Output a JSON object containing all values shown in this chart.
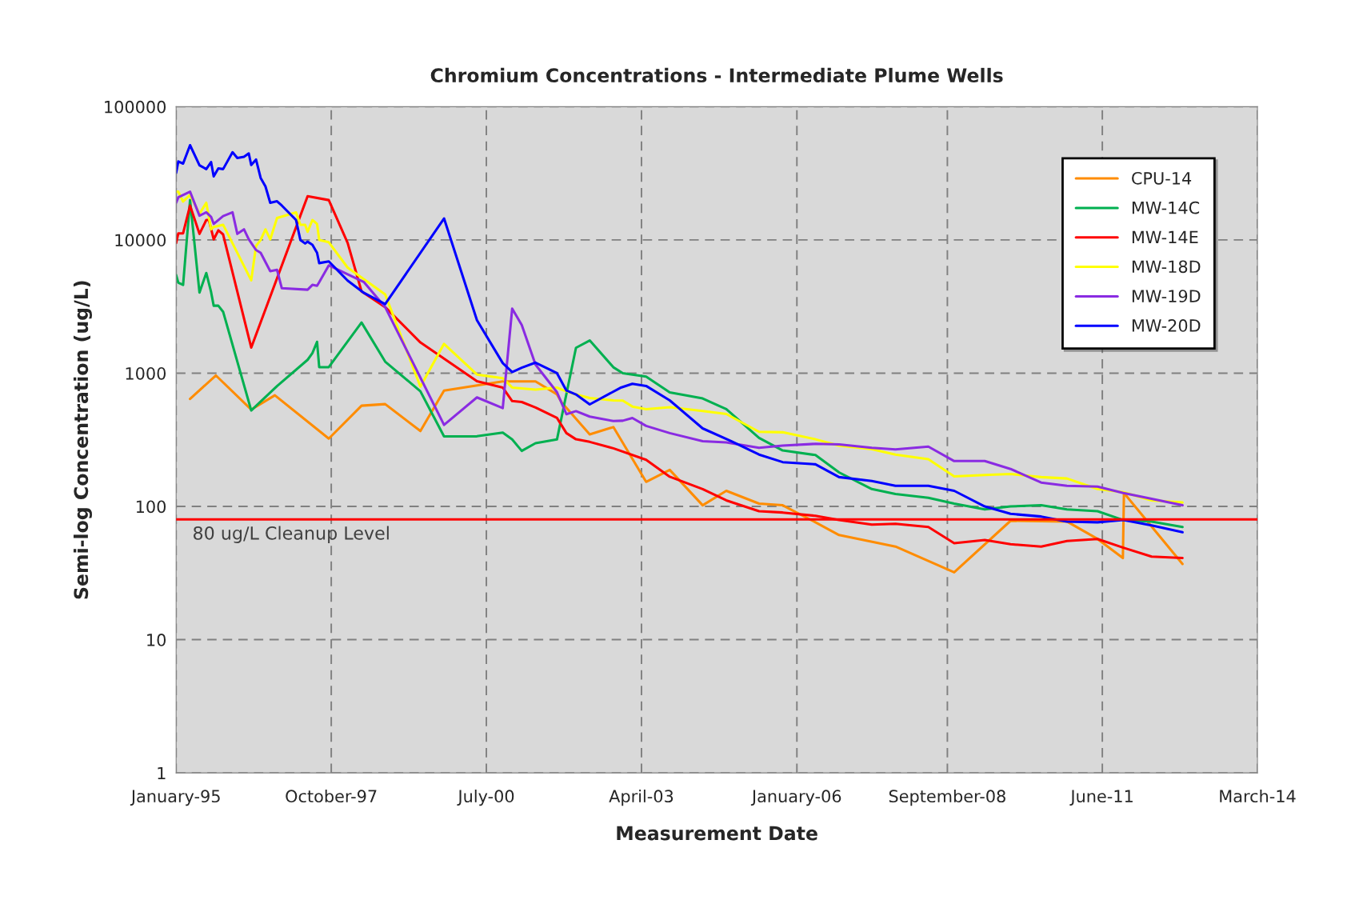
{
  "chart_data": {
    "type": "line",
    "title": "Chromium Concentrations - Intermediate Plume Wells",
    "xlabel": "Measurement Date",
    "ylabel": "Semi-log Concentration (ug/L)",
    "log": "y",
    "ylim": [
      1,
      100000
    ],
    "yticks": [
      1,
      10,
      100,
      1000,
      10000,
      100000
    ],
    "xlim": [
      "1995-01-01",
      "2014-03-01"
    ],
    "xticks": [
      {
        "value": "1995-01-01",
        "label": "January-95"
      },
      {
        "value": "1997-10-01",
        "label": "October-97"
      },
      {
        "value": "2000-07-01",
        "label": "July-00"
      },
      {
        "value": "2003-04-01",
        "label": "April-03"
      },
      {
        "value": "2006-01-01",
        "label": "January-06"
      },
      {
        "value": "2008-09-01",
        "label": "September-08"
      },
      {
        "value": "2011-06-01",
        "label": "June-11"
      },
      {
        "value": "2014-03-01",
        "label": "March-14"
      }
    ],
    "grid": true,
    "legend": "top right",
    "marker": "none",
    "line_style": "solid",
    "ref_lines": [
      {
        "axis": "y",
        "value": 80,
        "label": "80 ug/L Cleanup Level",
        "color": "#ff0000"
      }
    ],
    "series": [
      {
        "name": "CPU-14",
        "color": "#ff8c00",
        "x": [
          "1995-04-01",
          "1995-09-15",
          "1996-05-01",
          "1996-10-01",
          "1997-09-15",
          "1998-04-15",
          "1998-09-15",
          "1999-05-01",
          "1999-10-01",
          "2000-10-15",
          "2001-05-15",
          "2001-10-01",
          "2001-11-01",
          "2002-05-01",
          "2002-10-01",
          "2003-05-01",
          "2003-10-01",
          "2004-05-01",
          "2004-10-01",
          "2005-05-01",
          "2005-10-01",
          "2006-05-01",
          "2006-10-01",
          "2007-10-01",
          "2008-10-15",
          "2009-10-15",
          "2010-10-15",
          "2011-05-01",
          "2011-10-12",
          "2011-10-19",
          "2012-11-01"
        ],
        "values": [
          641,
          962,
          533,
          682,
          323,
          570,
          586,
          368,
          740,
          867,
          867,
          694,
          602,
          347,
          394,
          153,
          188,
          102,
          131,
          105,
          102,
          76,
          61,
          50,
          32,
          78,
          77,
          57,
          41,
          126,
          37
        ]
      },
      {
        "name": "MW-14C",
        "color": "#00b050",
        "x": [
          "1995-01-01",
          "1995-01-15",
          "1995-02-15",
          "1995-04-01",
          "1995-06-01",
          "1995-07-15",
          "1995-08-15",
          "1995-09-01",
          "1995-10-01",
          "1995-11-01",
          "1996-05-01",
          "1996-10-15",
          "1997-05-01",
          "1997-06-01",
          "1997-07-01",
          "1997-07-15",
          "1997-09-15",
          "1998-04-15",
          "1998-09-15",
          "1999-05-01",
          "1999-10-01",
          "2000-05-01",
          "2000-10-15",
          "2000-12-15",
          "2001-02-15",
          "2001-05-15",
          "2001-10-01",
          "2002-02-01",
          "2002-05-01",
          "2002-10-01",
          "2002-12-01",
          "2003-05-01",
          "2003-10-01",
          "2004-05-01",
          "2004-10-01",
          "2005-05-01",
          "2005-10-01",
          "2006-05-01",
          "2006-10-01",
          "2007-05-01",
          "2007-10-01",
          "2008-05-01",
          "2008-10-15",
          "2009-05-01",
          "2009-10-15",
          "2010-05-01",
          "2010-10-15",
          "2011-05-01",
          "2011-10-15",
          "2012-04-15",
          "2012-11-01"
        ],
        "values": [
          5450,
          4770,
          4600,
          19900,
          4030,
          5650,
          4070,
          3210,
          3210,
          2890,
          525,
          800,
          1260,
          1415,
          1720,
          1110,
          1110,
          2400,
          1220,
          731,
          335,
          336,
          358,
          318,
          261,
          298,
          318,
          1550,
          1760,
          1107,
          1000,
          942,
          718,
          646,
          537,
          327,
          263,
          243,
          180,
          135,
          124,
          116,
          105,
          95,
          100,
          102,
          95,
          92,
          79,
          77,
          70
        ]
      },
      {
        "name": "MW-14E",
        "color": "#ff0000",
        "x": [
          "1995-01-01",
          "1995-01-15",
          "1995-02-15",
          "1995-04-01",
          "1995-06-01",
          "1995-07-15",
          "1995-08-01",
          "1995-09-01",
          "1995-10-01",
          "1995-11-01",
          "1996-05-01",
          "1997-05-01",
          "1997-09-15",
          "1998-01-15",
          "1998-04-15",
          "1998-09-15",
          "1999-05-01",
          "2000-05-01",
          "2000-10-15",
          "2000-12-15",
          "2001-02-15",
          "2001-05-15",
          "2001-10-01",
          "2001-12-01",
          "2002-02-01",
          "2002-05-01",
          "2002-10-01",
          "2003-05-01",
          "2003-10-01",
          "2004-05-01",
          "2004-10-01",
          "2005-05-01",
          "2005-10-01",
          "2006-05-01",
          "2006-10-01",
          "2007-05-01",
          "2007-10-01",
          "2008-05-01",
          "2008-10-15",
          "2009-05-01",
          "2009-10-15",
          "2010-05-01",
          "2010-10-15",
          "2011-05-01",
          "2011-10-15",
          "2012-04-15",
          "2012-11-01"
        ],
        "values": [
          9500,
          11200,
          11200,
          18100,
          11100,
          14100,
          14100,
          10100,
          11800,
          11000,
          1556,
          21300,
          19900,
          9500,
          4110,
          3130,
          1700,
          871,
          780,
          618,
          608,
          553,
          462,
          355,
          319,
          305,
          273,
          224,
          167,
          135,
          111,
          92,
          90,
          85,
          79,
          73,
          74,
          70,
          53,
          56,
          52,
          50,
          55,
          57,
          49,
          42,
          41
        ]
      },
      {
        "name": "MW-18D",
        "color": "#ffff00",
        "x": [
          "1995-01-01",
          "1995-01-15",
          "1995-02-15",
          "1995-04-01",
          "1995-06-01",
          "1995-07-15",
          "1995-08-15",
          "1995-09-01",
          "1995-11-01",
          "1996-05-01",
          "1996-06-01",
          "1996-07-01",
          "1996-08-01",
          "1996-09-01",
          "1996-10-15",
          "1997-02-15",
          "1997-03-15",
          "1997-04-15",
          "1997-05-01",
          "1997-06-01",
          "1997-07-01",
          "1997-07-15",
          "1997-09-15",
          "1998-01-15",
          "1998-09-15",
          "1999-05-01",
          "1999-10-01",
          "2000-05-01",
          "2000-10-15",
          "2000-12-15",
          "2001-05-15",
          "2001-10-01",
          "2001-11-01",
          "2002-02-01",
          "2002-05-01",
          "2002-10-01",
          "2002-12-01",
          "2003-02-01",
          "2003-05-01",
          "2003-10-01",
          "2004-05-01",
          "2004-10-01",
          "2005-05-01",
          "2005-10-01",
          "2006-05-01",
          "2006-10-01",
          "2007-05-01",
          "2007-10-01",
          "2008-05-01",
          "2008-10-15",
          "2009-05-01",
          "2009-10-15",
          "2010-05-01",
          "2010-10-15",
          "2011-05-01",
          "2011-10-15",
          "2012-04-15",
          "2012-11-01"
        ],
        "values": [
          23000,
          23000,
          19400,
          21800,
          15700,
          19000,
          12000,
          12500,
          13000,
          4980,
          9000,
          10000,
          12000,
          10100,
          14600,
          16100,
          13000,
          13000,
          11500,
          14100,
          13200,
          10000,
          9600,
          6200,
          3900,
          793,
          1660,
          977,
          918,
          780,
          752,
          780,
          752,
          692,
          652,
          625,
          622,
          562,
          537,
          555,
          520,
          494,
          363,
          360,
          319,
          286,
          269,
          245,
          226,
          168,
          172,
          175,
          166,
          162,
          135,
          128,
          111,
          107
        ]
      },
      {
        "name": "MW-19D",
        "color": "#8a2be2",
        "x": [
          "1995-01-01",
          "1995-01-15",
          "1995-04-01",
          "1995-06-01",
          "1995-07-15",
          "1995-08-15",
          "1995-09-01",
          "1995-11-01",
          "1996-01-01",
          "1996-02-01",
          "1996-03-15",
          "1996-04-15",
          "1996-06-01",
          "1996-07-01",
          "1996-09-01",
          "1996-10-15",
          "1996-11-15",
          "1997-05-01",
          "1997-06-01",
          "1997-07-01",
          "1997-07-15",
          "1997-09-15",
          "1998-05-01",
          "1998-09-15",
          "1999-10-01",
          "2000-05-01",
          "2000-10-15",
          "2000-12-15",
          "2001-02-15",
          "2001-05-15",
          "2001-10-01",
          "2001-12-01",
          "2002-02-01",
          "2002-05-01",
          "2002-10-01",
          "2002-12-01",
          "2003-02-01",
          "2003-05-01",
          "2003-10-01",
          "2004-05-01",
          "2004-10-01",
          "2005-05-01",
          "2005-10-01",
          "2006-05-01",
          "2006-10-01",
          "2007-05-01",
          "2007-10-01",
          "2008-05-01",
          "2008-10-15",
          "2009-05-01",
          "2009-10-15",
          "2010-05-01",
          "2010-10-15",
          "2011-05-01",
          "2011-10-15",
          "2012-04-15",
          "2012-11-01"
        ],
        "values": [
          19000,
          20900,
          23000,
          15200,
          16100,
          14900,
          13200,
          15100,
          16100,
          11100,
          12000,
          10100,
          8400,
          8000,
          5830,
          5960,
          4340,
          4230,
          4600,
          4530,
          4820,
          6440,
          4820,
          3130,
          409,
          658,
          547,
          3050,
          2300,
          1160,
          720,
          492,
          519,
          472,
          437,
          440,
          461,
          402,
          355,
          309,
          302,
          275,
          286,
          295,
          292,
          275,
          268,
          281,
          219,
          219,
          191,
          151,
          143,
          141,
          126,
          114,
          102
        ]
      },
      {
        "name": "MW-20D",
        "color": "#0000ff",
        "x": [
          "1995-01-01",
          "1995-01-15",
          "1995-02-15",
          "1995-04-01",
          "1995-06-01",
          "1995-07-15",
          "1995-08-15",
          "1995-09-01",
          "1995-10-01",
          "1995-11-01",
          "1996-01-01",
          "1996-02-01",
          "1996-03-15",
          "1996-04-15",
          "1996-05-01",
          "1996-06-01",
          "1996-07-01",
          "1996-08-01",
          "1996-09-01",
          "1996-10-15",
          "1996-11-15",
          "1997-02-15",
          "1997-03-15",
          "1997-04-15",
          "1997-05-01",
          "1997-06-01",
          "1997-07-01",
          "1997-07-15",
          "1997-09-15",
          "1998-01-15",
          "1998-05-01",
          "1998-09-15",
          "1999-10-01",
          "2000-05-01",
          "2000-10-15",
          "2000-12-15",
          "2001-02-15",
          "2001-05-15",
          "2001-10-01",
          "2001-12-01",
          "2002-02-01",
          "2002-05-01",
          "2002-11-15",
          "2003-02-01",
          "2003-05-01",
          "2003-10-01",
          "2004-05-01",
          "2004-11-01",
          "2005-05-01",
          "2005-10-01",
          "2006-05-01",
          "2006-10-01",
          "2007-05-01",
          "2007-10-01",
          "2008-05-01",
          "2008-10-15",
          "2009-05-01",
          "2009-10-15",
          "2010-05-01",
          "2010-10-15",
          "2011-05-01",
          "2011-10-15",
          "2012-04-15",
          "2012-11-01"
        ],
        "values": [
          31900,
          38800,
          37400,
          51400,
          36300,
          34000,
          38400,
          30000,
          34400,
          34000,
          45500,
          41200,
          42000,
          44600,
          36500,
          40100,
          29200,
          25200,
          19000,
          19500,
          18100,
          14100,
          10000,
          9400,
          9700,
          9200,
          8000,
          6700,
          6900,
          4950,
          4000,
          3300,
          14500,
          2500,
          1190,
          1020,
          1100,
          1200,
          1000,
          741,
          692,
          583,
          776,
          832,
          802,
          625,
          385,
          309,
          245,
          215,
          207,
          166,
          155,
          143,
          143,
          131,
          100,
          88,
          84,
          77,
          76,
          79,
          72,
          64
        ]
      }
    ]
  }
}
